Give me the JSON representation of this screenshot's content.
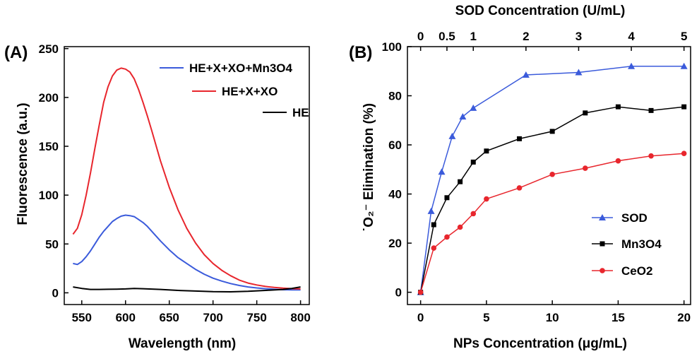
{
  "chart_data": [
    {
      "panel_label": "(A)",
      "type": "line",
      "xlabel": "Wavelength (nm)",
      "ylabel": "Fluorescence (a.u.)",
      "xlim": [
        530,
        810
      ],
      "ylim": [
        -12,
        252
      ],
      "xticks": [
        "550",
        "600",
        "650",
        "700",
        "750",
        "800"
      ],
      "yticks": [
        "0",
        "50",
        "100",
        "150",
        "200",
        "250"
      ],
      "legend_position": "top-right",
      "series": [
        {
          "name": "HE+X+XO+Mn3O4",
          "color": "#3b5bdb",
          "x": [
            540,
            545,
            550,
            555,
            560,
            565,
            570,
            575,
            580,
            585,
            590,
            595,
            600,
            605,
            610,
            615,
            620,
            625,
            630,
            640,
            650,
            660,
            670,
            680,
            690,
            700,
            710,
            720,
            730,
            740,
            750,
            760,
            770,
            780,
            790,
            800
          ],
          "y": [
            30,
            29,
            32,
            37,
            43,
            50,
            57,
            63,
            68,
            73,
            76,
            78.5,
            79.5,
            79,
            78,
            75,
            72,
            68,
            63,
            53,
            44,
            36,
            30,
            24,
            19,
            15,
            12,
            9.5,
            7.5,
            6,
            5,
            4.2,
            3.6,
            3.2,
            3,
            3
          ]
        },
        {
          "name": "HE+X+XO",
          "color": "#e8262d",
          "x": [
            540,
            545,
            550,
            555,
            560,
            565,
            570,
            575,
            580,
            585,
            590,
            595,
            600,
            605,
            610,
            615,
            620,
            625,
            630,
            640,
            650,
            660,
            670,
            680,
            690,
            700,
            710,
            720,
            730,
            740,
            750,
            760,
            770,
            780,
            790,
            800
          ],
          "y": [
            60,
            66,
            80,
            100,
            123,
            148,
            172,
            195,
            211,
            222,
            228,
            230,
            229,
            226,
            219,
            208,
            195,
            181,
            166,
            135,
            108,
            85,
            66,
            51,
            39,
            30,
            23,
            17.5,
            13,
            10,
            8,
            6.5,
            5.5,
            4.8,
            4.3,
            4
          ]
        },
        {
          "name": "HE",
          "color": "#000000",
          "x": [
            540,
            550,
            560,
            570,
            580,
            590,
            600,
            610,
            620,
            640,
            660,
            680,
            700,
            720,
            740,
            760,
            780,
            790,
            800
          ],
          "y": [
            6,
            4.5,
            3.5,
            3.5,
            3.6,
            3.8,
            4,
            4.5,
            4.2,
            3.5,
            2.5,
            1.8,
            1.2,
            1,
            1.5,
            2.5,
            3.5,
            4.5,
            6
          ]
        }
      ]
    },
    {
      "panel_label": "(B)",
      "type": "line",
      "xlabel": "NPs Concentration (μg/mL)",
      "ylabel": "˙O₂⁻ Elimination (%)",
      "x2label": "SOD Concentration (U/mL)",
      "xlim": [
        -1,
        20.5
      ],
      "ylim": [
        -5,
        100
      ],
      "xticks": [
        "0",
        "5",
        "10",
        "15",
        "20"
      ],
      "yticks": [
        "0",
        "20",
        "40",
        "60",
        "80",
        "100"
      ],
      "x2ticks": [
        "0",
        "0.5",
        "1",
        "2",
        "3",
        "4",
        "5"
      ],
      "legend_position": "bottom-right",
      "series": [
        {
          "name": "SOD",
          "color": "#3b5bdb",
          "marker": "triangle",
          "x": [
            0,
            0.8,
            1.6,
            2.4,
            3.2,
            4,
            8,
            12,
            16,
            20
          ],
          "y": [
            0,
            33,
            49,
            63.5,
            71.5,
            75,
            88.5,
            89.5,
            92,
            92
          ]
        },
        {
          "name": "Mn3O4",
          "color": "#000000",
          "marker": "square",
          "x": [
            0,
            1,
            2,
            3,
            4,
            5,
            7.5,
            10,
            12.5,
            15,
            17.5,
            20
          ],
          "y": [
            0,
            27.5,
            38.5,
            45,
            53,
            57.5,
            62.5,
            65.5,
            73,
            75.5,
            74,
            75.5
          ]
        },
        {
          "name": "CeO2",
          "color": "#e8262d",
          "marker": "circle",
          "x": [
            0,
            1,
            2,
            3,
            4,
            5,
            7.5,
            10,
            12.5,
            15,
            17.5,
            20
          ],
          "y": [
            0,
            18,
            22.5,
            26.5,
            32,
            38,
            42.5,
            48,
            50.5,
            53.5,
            55.5,
            56.5
          ]
        }
      ]
    }
  ]
}
